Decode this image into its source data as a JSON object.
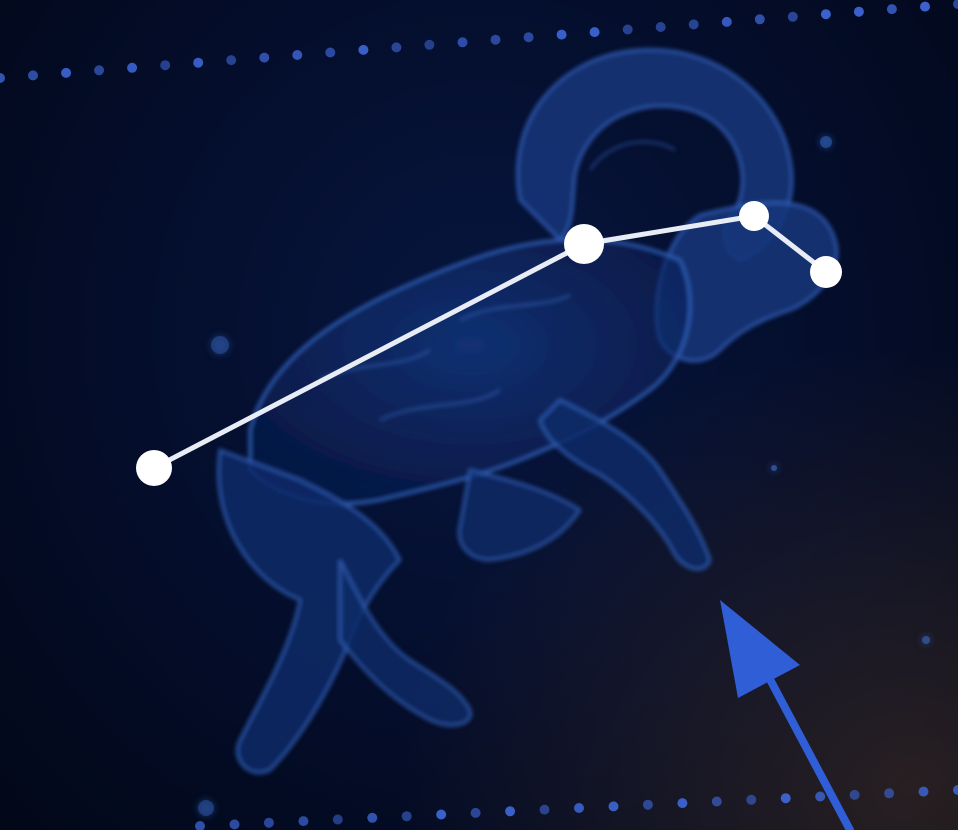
{
  "scene": {
    "subject": "aries-constellation",
    "colors": {
      "background": "#030a22",
      "ram_outline": "#2f5fb8",
      "ram_fill": "#0d2a66",
      "star": "#ffffff",
      "constellation_line": "#e8edf5",
      "dotted_band": "#3e66d6",
      "arrow": "#2f5ed6"
    },
    "icons": [
      "ram-figure",
      "star-marker",
      "arrow-pointer"
    ]
  }
}
